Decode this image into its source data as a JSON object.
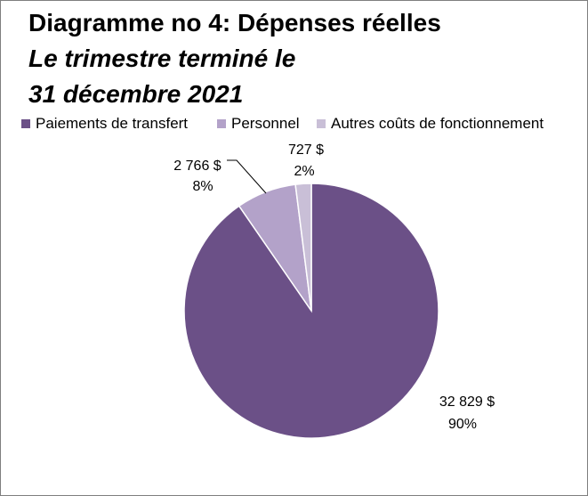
{
  "title": {
    "line1": "Diagramme no 4: Dépenses réelles",
    "line2": "Le trimestre terminé le",
    "line3": "31 décembre 2021"
  },
  "chart_data": {
    "type": "pie",
    "title": "Diagramme no 4: Dépenses réelles Le trimestre terminé le 31 décembre 2021",
    "legend_position": "top",
    "series": [
      {
        "name": "Paiements de transfert",
        "value": 32829,
        "value_label": "32 829  $",
        "percent_label": "90%",
        "color": "#6b5087"
      },
      {
        "name": "Personnel",
        "value": 2766,
        "value_label": "2 766  $",
        "percent_label": "8%",
        "color": "#b3a2c9"
      },
      {
        "name": "Autres coûts de fonctionnement",
        "value": 727,
        "value_label": "727  $",
        "percent_label": "2%",
        "color": "#c9bfd7"
      }
    ]
  }
}
